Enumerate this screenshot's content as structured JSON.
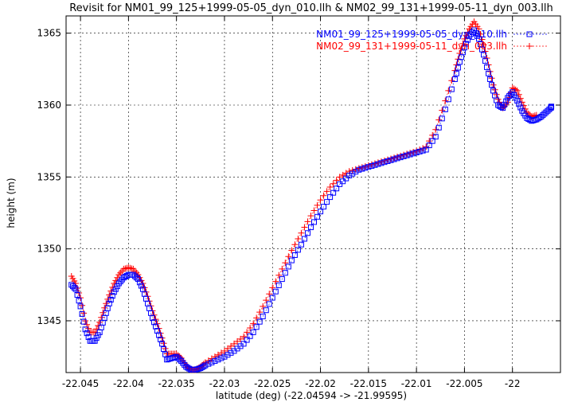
{
  "chart_data": {
    "type": "scatter",
    "title": "Revisit for NM01_99_125+1999-05-05_dyn_010.llh & NM02_99_131+1999-05-11_dyn_003.llh",
    "xlabel": "latitude (deg) (-22.04594 -> -21.99595)",
    "ylabel": "height (m)",
    "xlim": [
      -22.0465,
      -21.995
    ],
    "ylim": [
      1341.4,
      1366.2
    ],
    "xticks": [
      -22.045,
      -22.04,
      -22.035,
      -22.03,
      -22.025,
      -22.02,
      -22.015,
      -22.01,
      -22.005,
      -22.0
    ],
    "xtick_labels": [
      "-22.045",
      "-22.04",
      "-22.035",
      "-22.03",
      "-22.025",
      "-22.02",
      "-22.015",
      "-22.01",
      "-22.005",
      "-22"
    ],
    "yticks": [
      1345,
      1350,
      1355,
      1360,
      1365
    ],
    "ytick_labels": [
      "1345",
      "1350",
      "1355",
      "1360",
      "1365"
    ],
    "grid": true,
    "legend_position": "top-right",
    "series": [
      {
        "name": "NM01_99_125+1999-05-05_dyn_010.llh",
        "color": "#0000ff",
        "marker": "square",
        "x": [
          -22.04594,
          -22.0455,
          -22.045,
          -22.0445,
          -22.044,
          -22.0435,
          -22.043,
          -22.0425,
          -22.042,
          -22.0415,
          -22.041,
          -22.0405,
          -22.04,
          -22.0395,
          -22.039,
          -22.0385,
          -22.038,
          -22.0375,
          -22.037,
          -22.0365,
          -22.036,
          -22.0355,
          -22.035,
          -22.0345,
          -22.034,
          -22.0335,
          -22.033,
          -22.0325,
          -22.032,
          -22.031,
          -22.03,
          -22.029,
          -22.028,
          -22.027,
          -22.026,
          -22.025,
          -22.024,
          -22.023,
          -22.022,
          -22.021,
          -22.02,
          -22.019,
          -22.018,
          -22.017,
          -22.016,
          -22.015,
          -22.014,
          -22.013,
          -22.012,
          -22.011,
          -22.01,
          -22.009,
          -22.008,
          -22.007,
          -22.006,
          -22.0055,
          -22.005,
          -22.0045,
          -22.004,
          -22.0035,
          -22.003,
          -22.0025,
          -22.002,
          -22.0015,
          -22.001,
          -22.0005,
          -22.0,
          -21.9995,
          -21.999,
          -21.9985,
          -21.998,
          -21.9975,
          -21.997,
          -21.9965,
          -21.996,
          -21.99595
        ],
        "y": [
          1347.5,
          1347.2,
          1346.0,
          1344.4,
          1343.6,
          1343.6,
          1344.2,
          1345.2,
          1346.2,
          1347.0,
          1347.6,
          1348.0,
          1348.2,
          1348.2,
          1347.9,
          1347.2,
          1346.2,
          1345.2,
          1344.3,
          1343.4,
          1342.3,
          1342.4,
          1342.5,
          1342.2,
          1341.8,
          1341.6,
          1341.6,
          1341.7,
          1341.9,
          1342.2,
          1342.5,
          1342.9,
          1343.4,
          1344.2,
          1345.3,
          1346.6,
          1347.9,
          1349.2,
          1350.3,
          1351.5,
          1352.6,
          1353.6,
          1354.5,
          1355.1,
          1355.5,
          1355.7,
          1355.9,
          1356.1,
          1356.3,
          1356.5,
          1356.7,
          1356.9,
          1357.8,
          1359.7,
          1361.8,
          1363.0,
          1364.0,
          1364.8,
          1365.2,
          1364.6,
          1363.5,
          1362.2,
          1361.0,
          1360.0,
          1359.8,
          1360.5,
          1360.9,
          1360.3,
          1359.6,
          1359.1,
          1358.9,
          1359.0,
          1359.2,
          1359.5,
          1359.8,
          1359.9
        ]
      },
      {
        "name": "NM02_99_131+1999-05-11_dyn_003.llh",
        "color": "#ff0000",
        "marker": "plus",
        "x": [
          -22.04594,
          -22.0455,
          -22.045,
          -22.0445,
          -22.044,
          -22.0435,
          -22.043,
          -22.0425,
          -22.042,
          -22.0415,
          -22.041,
          -22.0405,
          -22.04,
          -22.0395,
          -22.039,
          -22.0385,
          -22.038,
          -22.0375,
          -22.037,
          -22.0365,
          -22.036,
          -22.0355,
          -22.035,
          -22.0345,
          -22.034,
          -22.0335,
          -22.033,
          -22.0325,
          -22.032,
          -22.031,
          -22.03,
          -22.029,
          -22.028,
          -22.027,
          -22.026,
          -22.025,
          -22.024,
          -22.023,
          -22.022,
          -22.021,
          -22.02,
          -22.019,
          -22.018,
          -22.017,
          -22.016,
          -22.015,
          -22.014,
          -22.013,
          -22.012,
          -22.011,
          -22.01,
          -22.009,
          -22.008,
          -22.007,
          -22.006,
          -22.0055,
          -22.005,
          -22.0045,
          -22.004,
          -22.0035,
          -22.003,
          -22.0025,
          -22.002,
          -22.0015,
          -22.001,
          -22.0005,
          -22.0,
          -21.9995,
          -21.999,
          -21.9985,
          -21.998,
          -21.9975
        ],
        "y": [
          1348.1,
          1347.6,
          1346.6,
          1345.0,
          1344.2,
          1344.2,
          1344.9,
          1345.9,
          1346.8,
          1347.6,
          1348.2,
          1348.6,
          1348.7,
          1348.6,
          1348.2,
          1347.6,
          1346.7,
          1345.7,
          1344.8,
          1343.8,
          1342.7,
          1342.7,
          1342.7,
          1342.4,
          1341.9,
          1341.6,
          1341.6,
          1341.8,
          1342.1,
          1342.5,
          1342.9,
          1343.4,
          1343.9,
          1344.8,
          1346.0,
          1347.3,
          1348.6,
          1349.9,
          1351.1,
          1352.3,
          1353.4,
          1354.3,
          1355.0,
          1355.4,
          1355.6,
          1355.8,
          1356.0,
          1356.2,
          1356.4,
          1356.6,
          1356.8,
          1357.1,
          1358.3,
          1360.3,
          1362.4,
          1363.6,
          1364.6,
          1365.3,
          1365.8,
          1365.3,
          1364.2,
          1362.8,
          1361.4,
          1360.4,
          1359.8,
          1360.2,
          1361.2,
          1361.0,
          1360.2,
          1359.5,
          1359.2,
          1359.3
        ]
      }
    ]
  }
}
